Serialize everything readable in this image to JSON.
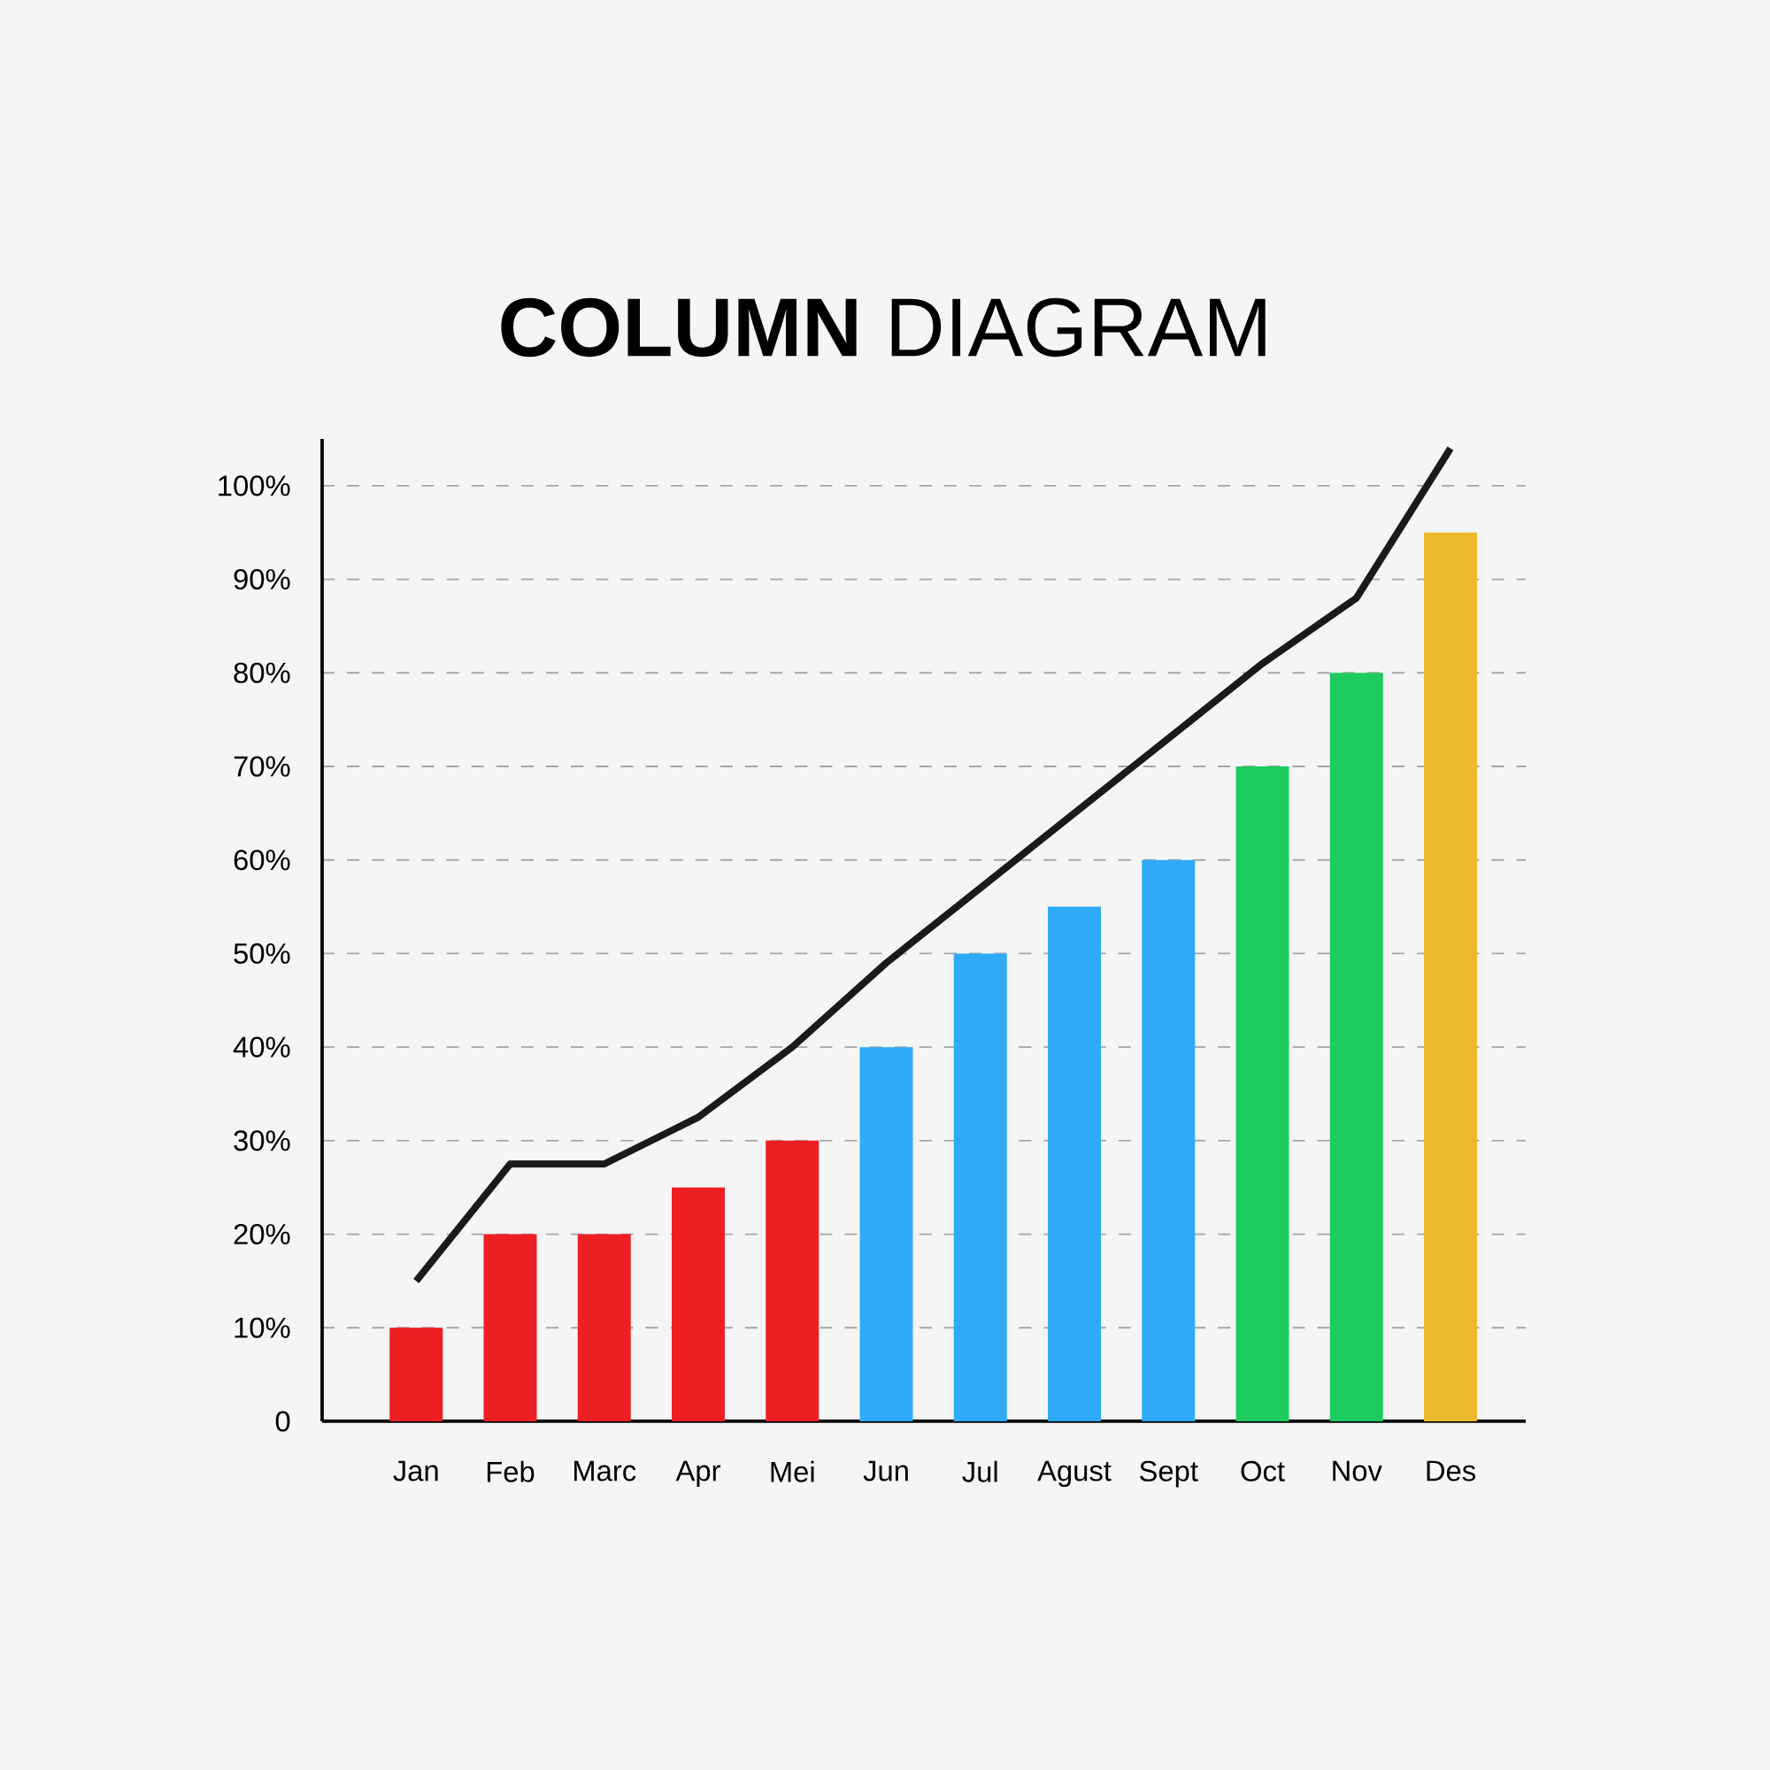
{
  "chart_data": {
    "type": "bar",
    "title": "**COLUMN** DIAGRAM",
    "categories": [
      "Jan",
      "Feb",
      "Marc",
      "Apr",
      "Mei",
      "Jun",
      "Jul",
      "Agust",
      "Sept",
      "Oct",
      "Nov",
      "Des"
    ],
    "series": [
      {
        "colors": [
          "#ee1f23",
          "#ee1f23",
          "#ee1f23",
          "#ee1f23",
          "#ee1f23",
          "#2eaaf8",
          "#2eaaf8",
          "#2eaaf8",
          "#2eaaf8",
          "#1ecb5e",
          "#1ecb5e",
          "#ecb92b"
        ],
        "values": [
          10,
          20,
          20,
          25,
          30,
          40,
          50,
          55,
          60,
          70,
          80,
          95
        ]
      },
      {
        "type": "line",
        "color": "#1a1a1a",
        "values": [
          15,
          27.5,
          27.5,
          32.5,
          40,
          49,
          57,
          65,
          73,
          81,
          88,
          104
        ]
      }
    ],
    "ylim": [
      0,
      105
    ],
    "yticks": [
      {
        "value": 0,
        "label": "0"
      },
      {
        "value": 10,
        "label": "10%"
      },
      {
        "value": 20,
        "label": "20%"
      },
      {
        "value": 30,
        "label": "30%"
      },
      {
        "value": 40,
        "label": "40%"
      },
      {
        "value": 50,
        "label": "50%"
      },
      {
        "value": 60,
        "label": "60%"
      },
      {
        "value": 70,
        "label": "70%"
      },
      {
        "value": 80,
        "label": "80%"
      },
      {
        "value": 90,
        "label": "90%"
      },
      {
        "value": 100,
        "label": "100%"
      }
    ],
    "grid": "y"
  }
}
